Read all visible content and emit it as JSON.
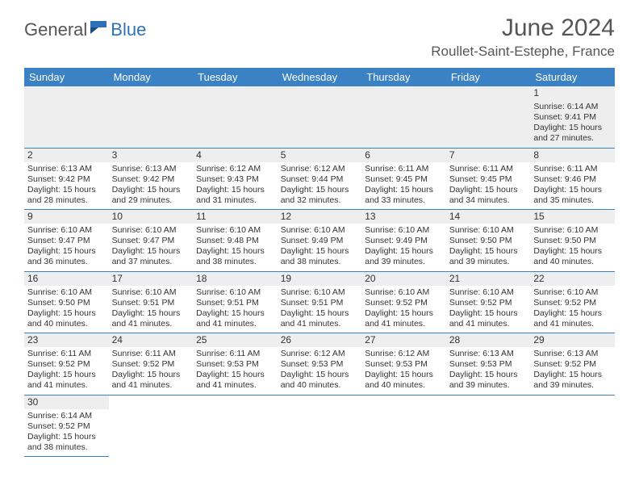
{
  "brand": {
    "general": "General",
    "blue": "Blue"
  },
  "title": "June 2024",
  "location": "Roullet-Saint-Estephe, France",
  "colors": {
    "header_bg": "#3b82c4",
    "header_fg": "#ffffff",
    "row_border": "#3b82c4",
    "daynum_bg": "#eeeeee",
    "text": "#333333",
    "logo_gray": "#555555",
    "logo_blue": "#2d72b8"
  },
  "typography": {
    "title_fontsize": 30,
    "location_fontsize": 17,
    "th_fontsize": 13,
    "cell_fontsize": 10.5,
    "daynum_fontsize": 12
  },
  "weekdays": [
    "Sunday",
    "Monday",
    "Tuesday",
    "Wednesday",
    "Thursday",
    "Friday",
    "Saturday"
  ],
  "first_weekday_index": 6,
  "days": [
    {
      "n": 1,
      "sunrise": "6:14 AM",
      "sunset": "9:41 PM",
      "daylight": "15 hours and 27 minutes."
    },
    {
      "n": 2,
      "sunrise": "6:13 AM",
      "sunset": "9:42 PM",
      "daylight": "15 hours and 28 minutes."
    },
    {
      "n": 3,
      "sunrise": "6:13 AM",
      "sunset": "9:42 PM",
      "daylight": "15 hours and 29 minutes."
    },
    {
      "n": 4,
      "sunrise": "6:12 AM",
      "sunset": "9:43 PM",
      "daylight": "15 hours and 31 minutes."
    },
    {
      "n": 5,
      "sunrise": "6:12 AM",
      "sunset": "9:44 PM",
      "daylight": "15 hours and 32 minutes."
    },
    {
      "n": 6,
      "sunrise": "6:11 AM",
      "sunset": "9:45 PM",
      "daylight": "15 hours and 33 minutes."
    },
    {
      "n": 7,
      "sunrise": "6:11 AM",
      "sunset": "9:45 PM",
      "daylight": "15 hours and 34 minutes."
    },
    {
      "n": 8,
      "sunrise": "6:11 AM",
      "sunset": "9:46 PM",
      "daylight": "15 hours and 35 minutes."
    },
    {
      "n": 9,
      "sunrise": "6:10 AM",
      "sunset": "9:47 PM",
      "daylight": "15 hours and 36 minutes."
    },
    {
      "n": 10,
      "sunrise": "6:10 AM",
      "sunset": "9:47 PM",
      "daylight": "15 hours and 37 minutes."
    },
    {
      "n": 11,
      "sunrise": "6:10 AM",
      "sunset": "9:48 PM",
      "daylight": "15 hours and 38 minutes."
    },
    {
      "n": 12,
      "sunrise": "6:10 AM",
      "sunset": "9:49 PM",
      "daylight": "15 hours and 38 minutes."
    },
    {
      "n": 13,
      "sunrise": "6:10 AM",
      "sunset": "9:49 PM",
      "daylight": "15 hours and 39 minutes."
    },
    {
      "n": 14,
      "sunrise": "6:10 AM",
      "sunset": "9:50 PM",
      "daylight": "15 hours and 39 minutes."
    },
    {
      "n": 15,
      "sunrise": "6:10 AM",
      "sunset": "9:50 PM",
      "daylight": "15 hours and 40 minutes."
    },
    {
      "n": 16,
      "sunrise": "6:10 AM",
      "sunset": "9:50 PM",
      "daylight": "15 hours and 40 minutes."
    },
    {
      "n": 17,
      "sunrise": "6:10 AM",
      "sunset": "9:51 PM",
      "daylight": "15 hours and 41 minutes."
    },
    {
      "n": 18,
      "sunrise": "6:10 AM",
      "sunset": "9:51 PM",
      "daylight": "15 hours and 41 minutes."
    },
    {
      "n": 19,
      "sunrise": "6:10 AM",
      "sunset": "9:51 PM",
      "daylight": "15 hours and 41 minutes."
    },
    {
      "n": 20,
      "sunrise": "6:10 AM",
      "sunset": "9:52 PM",
      "daylight": "15 hours and 41 minutes."
    },
    {
      "n": 21,
      "sunrise": "6:10 AM",
      "sunset": "9:52 PM",
      "daylight": "15 hours and 41 minutes."
    },
    {
      "n": 22,
      "sunrise": "6:10 AM",
      "sunset": "9:52 PM",
      "daylight": "15 hours and 41 minutes."
    },
    {
      "n": 23,
      "sunrise": "6:11 AM",
      "sunset": "9:52 PM",
      "daylight": "15 hours and 41 minutes."
    },
    {
      "n": 24,
      "sunrise": "6:11 AM",
      "sunset": "9:52 PM",
      "daylight": "15 hours and 41 minutes."
    },
    {
      "n": 25,
      "sunrise": "6:11 AM",
      "sunset": "9:53 PM",
      "daylight": "15 hours and 41 minutes."
    },
    {
      "n": 26,
      "sunrise": "6:12 AM",
      "sunset": "9:53 PM",
      "daylight": "15 hours and 40 minutes."
    },
    {
      "n": 27,
      "sunrise": "6:12 AM",
      "sunset": "9:53 PM",
      "daylight": "15 hours and 40 minutes."
    },
    {
      "n": 28,
      "sunrise": "6:13 AM",
      "sunset": "9:53 PM",
      "daylight": "15 hours and 39 minutes."
    },
    {
      "n": 29,
      "sunrise": "6:13 AM",
      "sunset": "9:52 PM",
      "daylight": "15 hours and 39 minutes."
    },
    {
      "n": 30,
      "sunrise": "6:14 AM",
      "sunset": "9:52 PM",
      "daylight": "15 hours and 38 minutes."
    }
  ],
  "labels": {
    "sunrise": "Sunrise:",
    "sunset": "Sunset:",
    "daylight": "Daylight:"
  }
}
